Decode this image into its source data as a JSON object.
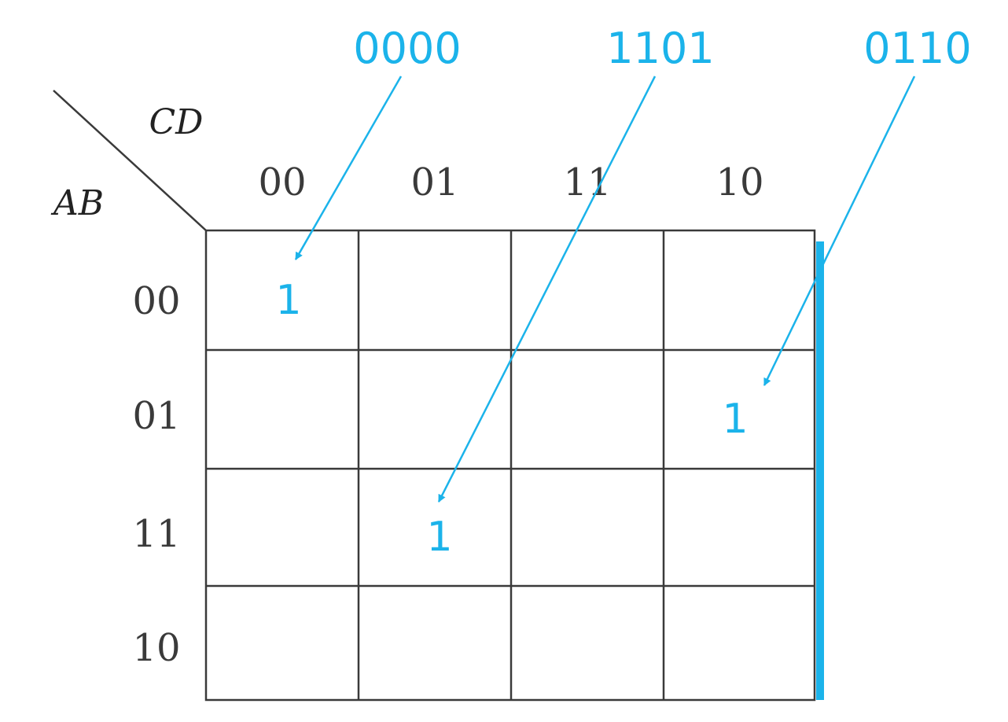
{
  "colors": {
    "grid": "#3a3a3a",
    "accent": "#1bb3ea",
    "background": "#ffffff"
  },
  "kmap": {
    "row_variables": "AB",
    "column_variables": "CD",
    "column_labels": [
      "00",
      "01",
      "11",
      "10"
    ],
    "row_labels": [
      "00",
      "01",
      "11",
      "10"
    ],
    "cells": [
      {
        "row": 0,
        "col": 0,
        "value": "1"
      },
      {
        "row": 1,
        "col": 3,
        "value": "1"
      },
      {
        "row": 2,
        "col": 1,
        "value": "1"
      }
    ]
  },
  "annotations": [
    {
      "text": "0000",
      "target_row": 0,
      "target_col": 0
    },
    {
      "text": "1101",
      "target_row": 2,
      "target_col": 1
    },
    {
      "text": "0110",
      "target_row": 1,
      "target_col": 3
    }
  ]
}
